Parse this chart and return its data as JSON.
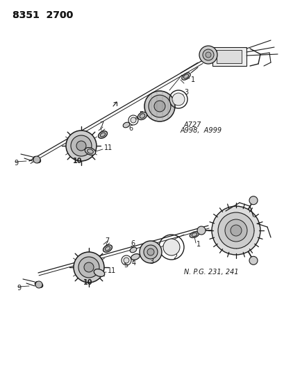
{
  "title": "8351 2700",
  "bg_color": "#ffffff",
  "line_color": "#1a1a1a",
  "annotation1": "A727",
  "annotation2": "A998,  A999",
  "annotation3": "N. P.G. 231, 241",
  "fig_width": 4.1,
  "fig_height": 5.33,
  "dpi": 100
}
